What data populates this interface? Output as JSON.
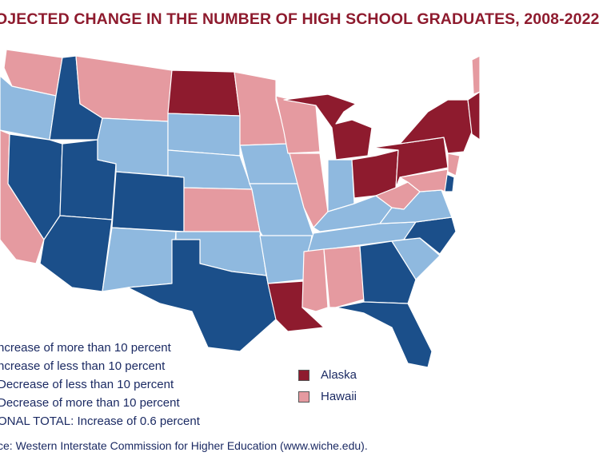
{
  "title": "OJECTED CHANGE IN THE NUMBER OF HIGH SCHOOL GRADUATES, 2008-2022",
  "colors": {
    "inc_more_10": "#8e1b2e",
    "inc_less_10": "#e59aa0",
    "dec_less_10": "#8fb9df",
    "dec_more_10": "#1b4f8a",
    "border": "#ffffff"
  },
  "legend": {
    "inc_more_10": "ncrease of more than 10 percent",
    "inc_less_10": "ncrease of less than 10 percent",
    "dec_less_10": "Decrease of less than 10 percent",
    "dec_more_10": "Decrease of more than 10 percent",
    "total": "ONAL TOTAL: Increase of 0.6 percent"
  },
  "insets": {
    "alaska": {
      "label": "Alaska",
      "category": "inc_more_10"
    },
    "hawaii": {
      "label": "Hawaii",
      "category": "inc_less_10"
    }
  },
  "source": "ce: Western Interstate Commission for Higher Education (www.wiche.edu).",
  "states": {
    "WA": "inc_less_10",
    "OR": "dec_less_10",
    "CA": "inc_less_10",
    "ID": "dec_more_10",
    "NV": "dec_more_10",
    "UT": "dec_more_10",
    "AZ": "dec_more_10",
    "MT": "inc_less_10",
    "WY": "dec_less_10",
    "CO": "dec_more_10",
    "NM": "dec_less_10",
    "ND": "inc_more_10",
    "SD": "dec_less_10",
    "NE": "dec_less_10",
    "KS": "inc_less_10",
    "OK": "dec_less_10",
    "TX": "dec_more_10",
    "MN": "inc_less_10",
    "IA": "dec_less_10",
    "MO": "dec_less_10",
    "AR": "dec_less_10",
    "LA": "inc_more_10",
    "WI": "inc_less_10",
    "IL": "inc_less_10",
    "MI": "inc_more_10",
    "IN": "dec_less_10",
    "OH": "inc_more_10",
    "KY": "dec_less_10",
    "TN": "dec_less_10",
    "MS": "inc_less_10",
    "AL": "inc_less_10",
    "GA": "dec_more_10",
    "FL": "dec_more_10",
    "SC": "dec_less_10",
    "NC": "dec_more_10",
    "VA": "dec_less_10",
    "WV": "inc_less_10",
    "PA": "inc_more_10",
    "NY": "inc_more_10",
    "NJ": "inc_less_10",
    "DE": "dec_more_10",
    "MD": "inc_less_10",
    "NE_region": "inc_more_10",
    "ME": "inc_less_10"
  }
}
